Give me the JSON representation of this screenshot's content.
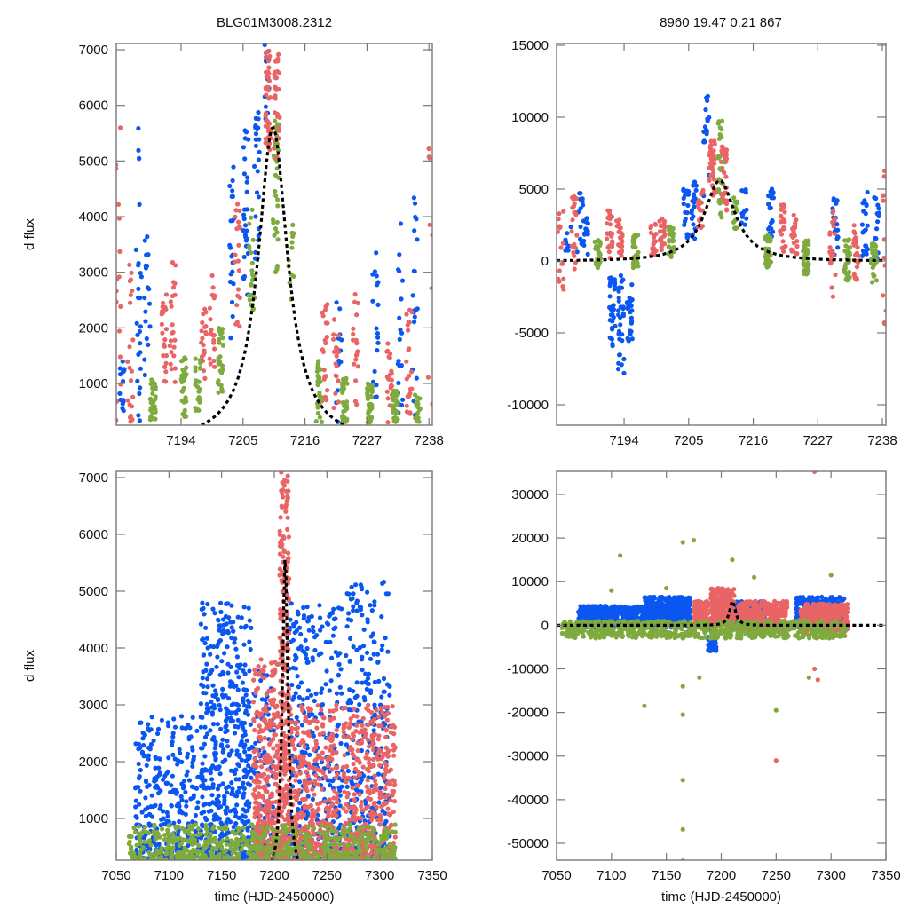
{
  "figure": {
    "title_left": "BLG01M3008.2312",
    "title_right": "8960  19.47  0.21  867"
  },
  "colors": {
    "blue": "#0a56f0",
    "red": "#e96464",
    "green": "#7eaa3e",
    "fit": "#000000",
    "frame": "#777777"
  },
  "chart_data": [
    {
      "id": "top-left",
      "type": "scatter",
      "title": "BLG01M3008.2312",
      "xlabel": "",
      "ylabel": "d flux",
      "xlim": [
        7182.5,
        7238.6
      ],
      "ylim": [
        250,
        7112
      ],
      "xticks": [
        7194,
        7205,
        7216,
        7227,
        7238
      ],
      "yticks": [
        1000,
        2000,
        3000,
        4000,
        5000,
        6000,
        7000
      ],
      "grid": false,
      "fit_curve": {
        "t0": 7210.3,
        "peak": 5600,
        "tE": 3.2,
        "base": 0
      },
      "series": [
        {
          "name": "blue",
          "color": "#0a56f0",
          "clusters": [
            {
              "x": 7183.5,
              "ymin": 300,
              "ymax": 1400,
              "n": 14
            },
            {
              "x": 7186.5,
              "ymin": 300,
              "ymax": 5900,
              "n": 26
            },
            {
              "x": 7188,
              "ymin": 300,
              "ymax": 3800,
              "n": 18
            },
            {
              "x": 7203,
              "ymin": 1800,
              "ymax": 4900,
              "n": 22
            },
            {
              "x": 7205.5,
              "ymin": 2500,
              "ymax": 5600,
              "n": 30
            },
            {
              "x": 7207.5,
              "ymin": 3000,
              "ymax": 5900,
              "n": 24
            },
            {
              "x": 7209.3,
              "ymin": 5700,
              "ymax": 7100,
              "n": 14
            },
            {
              "x": 7222,
              "ymin": 300,
              "ymax": 2500,
              "n": 12
            },
            {
              "x": 7228.5,
              "ymin": 600,
              "ymax": 3400,
              "n": 18
            },
            {
              "x": 7233,
              "ymin": 300,
              "ymax": 4200,
              "n": 20
            },
            {
              "x": 7235.5,
              "ymin": 300,
              "ymax": 4500,
              "n": 20
            }
          ]
        },
        {
          "name": "red",
          "color": "#e96464",
          "clusters": [
            {
              "x": 7182.8,
              "ymin": 300,
              "ymax": 5800,
              "n": 16
            },
            {
              "x": 7185,
              "ymin": 300,
              "ymax": 3200,
              "n": 22
            },
            {
              "x": 7191,
              "ymin": 1000,
              "ymax": 2600,
              "n": 22
            },
            {
              "x": 7192.5,
              "ymin": 1000,
              "ymax": 3200,
              "n": 22
            },
            {
              "x": 7198,
              "ymin": 1000,
              "ymax": 2400,
              "n": 20
            },
            {
              "x": 7199.5,
              "ymin": 1200,
              "ymax": 3000,
              "n": 18
            },
            {
              "x": 7204,
              "ymin": 2000,
              "ymax": 4500,
              "n": 20
            },
            {
              "x": 7209.5,
              "ymin": 5200,
              "ymax": 7100,
              "n": 40
            },
            {
              "x": 7211,
              "ymin": 5000,
              "ymax": 7000,
              "n": 40
            },
            {
              "x": 7219.5,
              "ymin": 600,
              "ymax": 2500,
              "n": 22
            },
            {
              "x": 7221.5,
              "ymin": 500,
              "ymax": 2200,
              "n": 20
            },
            {
              "x": 7225,
              "ymin": 500,
              "ymax": 2800,
              "n": 18
            },
            {
              "x": 7231,
              "ymin": 300,
              "ymax": 1800,
              "n": 20
            },
            {
              "x": 7234.5,
              "ymin": 300,
              "ymax": 2400,
              "n": 22
            },
            {
              "x": 7238.2,
              "ymin": 300,
              "ymax": 6900,
              "n": 8
            }
          ]
        },
        {
          "name": "green",
          "color": "#7eaa3e",
          "clusters": [
            {
              "x": 7189,
              "ymin": 300,
              "ymax": 1100,
              "n": 30
            },
            {
              "x": 7194.5,
              "ymin": 400,
              "ymax": 1500,
              "n": 30
            },
            {
              "x": 7197,
              "ymin": 500,
              "ymax": 1500,
              "n": 26
            },
            {
              "x": 7201,
              "ymin": 800,
              "ymax": 2000,
              "n": 26
            },
            {
              "x": 7206.5,
              "ymin": 2200,
              "ymax": 4200,
              "n": 24
            },
            {
              "x": 7210.8,
              "ymin": 3000,
              "ymax": 6000,
              "n": 30
            },
            {
              "x": 7213.5,
              "ymin": 2400,
              "ymax": 4000,
              "n": 12
            },
            {
              "x": 7218.5,
              "ymin": 300,
              "ymax": 1500,
              "n": 30
            },
            {
              "x": 7223,
              "ymin": 300,
              "ymax": 1100,
              "n": 40
            },
            {
              "x": 7227.5,
              "ymin": 300,
              "ymax": 1000,
              "n": 40
            },
            {
              "x": 7232,
              "ymin": 300,
              "ymax": 900,
              "n": 30
            },
            {
              "x": 7236,
              "ymin": 300,
              "ymax": 800,
              "n": 20
            }
          ]
        }
      ]
    },
    {
      "id": "top-right",
      "type": "scatter",
      "title": "8960  19.47  0.21  867",
      "xlabel": "",
      "ylabel": "",
      "xlim": [
        7182.5,
        7238.6
      ],
      "ylim": [
        -11420,
        15120
      ],
      "xticks": [
        7194,
        7205,
        7216,
        7227,
        7238
      ],
      "yticks": [
        -10000,
        -5000,
        0,
        5000,
        10000,
        15000
      ],
      "grid": false,
      "fit_curve": {
        "t0": 7210.3,
        "peak": 5600,
        "tE": 3.2,
        "base": 0
      },
      "series": [
        {
          "name": "blue",
          "color": "#0a56f0",
          "clusters": [
            {
              "x": 7184.5,
              "ymin": 0,
              "ymax": 2500,
              "n": 10
            },
            {
              "x": 7186.5,
              "ymin": 200,
              "ymax": 5000,
              "n": 14
            },
            {
              "x": 7187.5,
              "ymin": 300,
              "ymax": 3600,
              "n": 14
            },
            {
              "x": 7192,
              "ymin": -6000,
              "ymax": -500,
              "n": 30
            },
            {
              "x": 7193.5,
              "ymin": -8500,
              "ymax": -1000,
              "n": 30
            },
            {
              "x": 7195,
              "ymin": -6000,
              "ymax": -1000,
              "n": 24
            },
            {
              "x": 7204.5,
              "ymin": 1500,
              "ymax": 5500,
              "n": 20
            },
            {
              "x": 7206,
              "ymin": 1500,
              "ymax": 5500,
              "n": 20
            },
            {
              "x": 7208,
              "ymin": 4500,
              "ymax": 11500,
              "n": 18
            },
            {
              "x": 7214.5,
              "ymin": 2500,
              "ymax": 5000,
              "n": 12
            },
            {
              "x": 7219,
              "ymin": 1500,
              "ymax": 5000,
              "n": 22
            },
            {
              "x": 7230,
              "ymin": 300,
              "ymax": 4500,
              "n": 20
            },
            {
              "x": 7235,
              "ymin": 300,
              "ymax": 5000,
              "n": 22
            },
            {
              "x": 7237,
              "ymin": 0,
              "ymax": 4500,
              "n": 14
            }
          ]
        },
        {
          "name": "red",
          "color": "#e96464",
          "clusters": [
            {
              "x": 7183.2,
              "ymin": -2000,
              "ymax": 3500,
              "n": 20
            },
            {
              "x": 7185.5,
              "ymin": -1000,
              "ymax": 4500,
              "n": 20
            },
            {
              "x": 7191.5,
              "ymin": 200,
              "ymax": 3600,
              "n": 26
            },
            {
              "x": 7193.2,
              "ymin": 200,
              "ymax": 3200,
              "n": 24
            },
            {
              "x": 7199,
              "ymin": 200,
              "ymax": 2800,
              "n": 20
            },
            {
              "x": 7200.5,
              "ymin": 500,
              "ymax": 3000,
              "n": 20
            },
            {
              "x": 7207,
              "ymin": 2000,
              "ymax": 5000,
              "n": 18
            },
            {
              "x": 7209,
              "ymin": 4500,
              "ymax": 8500,
              "n": 40
            },
            {
              "x": 7211,
              "ymin": 3500,
              "ymax": 8000,
              "n": 36
            },
            {
              "x": 7221,
              "ymin": 500,
              "ymax": 4000,
              "n": 24
            },
            {
              "x": 7223,
              "ymin": 500,
              "ymax": 3500,
              "n": 24
            },
            {
              "x": 7229.5,
              "ymin": -2500,
              "ymax": 3500,
              "n": 22
            },
            {
              "x": 7233.5,
              "ymin": -1500,
              "ymax": 2500,
              "n": 24
            },
            {
              "x": 7238.3,
              "ymin": -4500,
              "ymax": 6900,
              "n": 12
            }
          ]
        },
        {
          "name": "green",
          "color": "#7eaa3e",
          "clusters": [
            {
              "x": 7189.5,
              "ymin": -500,
              "ymax": 1500,
              "n": 30
            },
            {
              "x": 7196,
              "ymin": -500,
              "ymax": 1800,
              "n": 30
            },
            {
              "x": 7202,
              "ymin": 200,
              "ymax": 2500,
              "n": 26
            },
            {
              "x": 7210.5,
              "ymin": 3000,
              "ymax": 10000,
              "n": 30
            },
            {
              "x": 7213,
              "ymin": 1500,
              "ymax": 4500,
              "n": 14
            },
            {
              "x": 7218.5,
              "ymin": -500,
              "ymax": 1800,
              "n": 34
            },
            {
              "x": 7225,
              "ymin": -1000,
              "ymax": 1500,
              "n": 40
            },
            {
              "x": 7232,
              "ymin": -1500,
              "ymax": 1500,
              "n": 34
            },
            {
              "x": 7236.5,
              "ymin": -1500,
              "ymax": 1200,
              "n": 24
            }
          ]
        }
      ]
    },
    {
      "id": "bottom-left",
      "type": "scatter",
      "title": "",
      "xlabel": "time (HJD-2450000)",
      "ylabel": "d flux",
      "xlim": [
        7050,
        7350
      ],
      "ylim": [
        266,
        7109
      ],
      "xticks": [
        7050,
        7100,
        7150,
        7200,
        7250,
        7300,
        7350
      ],
      "yticks": [
        1000,
        2000,
        3000,
        4000,
        5000,
        6000,
        7000
      ],
      "grid": false,
      "fit_curve": {
        "t0": 7210.3,
        "peak": 5600,
        "tE": 3.2,
        "base": 0
      },
      "series": [
        {
          "name": "blue",
          "color": "#0a56f0",
          "bands": [
            {
              "xmin": 7068,
              "xmax": 7128,
              "ymax": 2800,
              "n": 320
            },
            {
              "xmin": 7130,
              "xmax": 7178,
              "ymax": 4800,
              "n": 520
            },
            {
              "xmin": 7178,
              "xmax": 7200,
              "ymax": 3600,
              "n": 120
            },
            {
              "xmin": 7214,
              "xmax": 7265,
              "ymax": 4800,
              "n": 360
            },
            {
              "xmin": 7268,
              "xmax": 7310,
              "ymax": 5200,
              "n": 300
            }
          ]
        },
        {
          "name": "red",
          "color": "#e96464",
          "bands": [
            {
              "xmin": 7180,
              "xmax": 7205,
              "ymax": 3800,
              "n": 360
            },
            {
              "xmin": 7205,
              "xmax": 7214,
              "ymax": 7100,
              "n": 280
            },
            {
              "xmin": 7214,
              "xmax": 7260,
              "ymax": 3000,
              "n": 360
            },
            {
              "xmin": 7265,
              "xmax": 7315,
              "ymax": 3000,
              "n": 380
            }
          ]
        },
        {
          "name": "green",
          "color": "#7eaa3e",
          "bands": [
            {
              "xmin": 7062,
              "xmax": 7315,
              "ymax": 900,
              "n": 650
            }
          ]
        }
      ]
    },
    {
      "id": "bottom-right",
      "type": "scatter",
      "title": "",
      "xlabel": "time (HJD-2450000)",
      "ylabel": "",
      "xlim": [
        7050,
        7350
      ],
      "ylim": [
        -53870,
        35290
      ],
      "xticks": [
        7050,
        7100,
        7150,
        7200,
        7250,
        7300,
        7350
      ],
      "yticks": [
        -50000,
        -40000,
        -30000,
        -20000,
        -10000,
        0,
        10000,
        20000,
        30000
      ],
      "grid": false,
      "fit_curve": {
        "t0": 7210.3,
        "peak": 5600,
        "tE": 3.2,
        "base": 0
      },
      "series": [
        {
          "name": "blue",
          "color": "#0a56f0",
          "bands": [
            {
              "xmin": 7070,
              "xmax": 7130,
              "ymin": -500,
              "ymax": 4500,
              "n": 400
            },
            {
              "xmin": 7130,
              "xmax": 7172,
              "ymin": -500,
              "ymax": 6500,
              "n": 500
            },
            {
              "xmin": 7188,
              "xmax": 7196,
              "ymin": -6000,
              "ymax": 1000,
              "n": 80
            },
            {
              "xmin": 7212,
              "xmax": 7240,
              "ymin": -500,
              "ymax": 5500,
              "n": 220
            },
            {
              "xmin": 7268,
              "xmax": 7312,
              "ymin": -500,
              "ymax": 6500,
              "n": 260
            }
          ]
        },
        {
          "name": "red",
          "color": "#e96464",
          "bands": [
            {
              "xmin": 7175,
              "xmax": 7188,
              "ymin": -500,
              "ymax": 5500,
              "n": 180
            },
            {
              "xmin": 7190,
              "xmax": 7212,
              "ymin": 0,
              "ymax": 8500,
              "n": 300
            },
            {
              "xmin": 7215,
              "xmax": 7260,
              "ymin": -1500,
              "ymax": 5500,
              "n": 360
            },
            {
              "xmin": 7272,
              "xmax": 7315,
              "ymin": -1500,
              "ymax": 5000,
              "n": 360
            }
          ]
        },
        {
          "name": "green",
          "color": "#7eaa3e",
          "bands": [
            {
              "xmin": 7055,
              "xmax": 7315,
              "ymin": -3000,
              "ymax": 1000,
              "n": 700
            }
          ]
        },
        {
          "name": "green-outliers",
          "color": "#7eaa3e",
          "points": [
            [
              7108,
              16000
            ],
            [
              7165,
              19000
            ],
            [
              7175,
              19500
            ],
            [
              7210,
              15000
            ],
            [
              7130,
              -18500
            ],
            [
              7165,
              -14000
            ],
            [
              7165,
              -20500
            ],
            [
              7180,
              -12000
            ],
            [
              7165,
              -35500
            ],
            [
              7165,
              -46800
            ],
            [
              7165,
              -54000
            ],
            [
              7250,
              -19500
            ],
            [
              7280,
              -12000
            ],
            [
              7100,
              8000
            ],
            [
              7150,
              8500
            ],
            [
              7230,
              11000
            ],
            [
              7300,
              11500
            ]
          ]
        },
        {
          "name": "red-outliers",
          "color": "#e96464",
          "points": [
            [
              7285,
              35200
            ],
            [
              7250,
              -31000
            ],
            [
              7288,
              -12500
            ],
            [
              7285,
              -10000
            ]
          ]
        }
      ]
    }
  ]
}
